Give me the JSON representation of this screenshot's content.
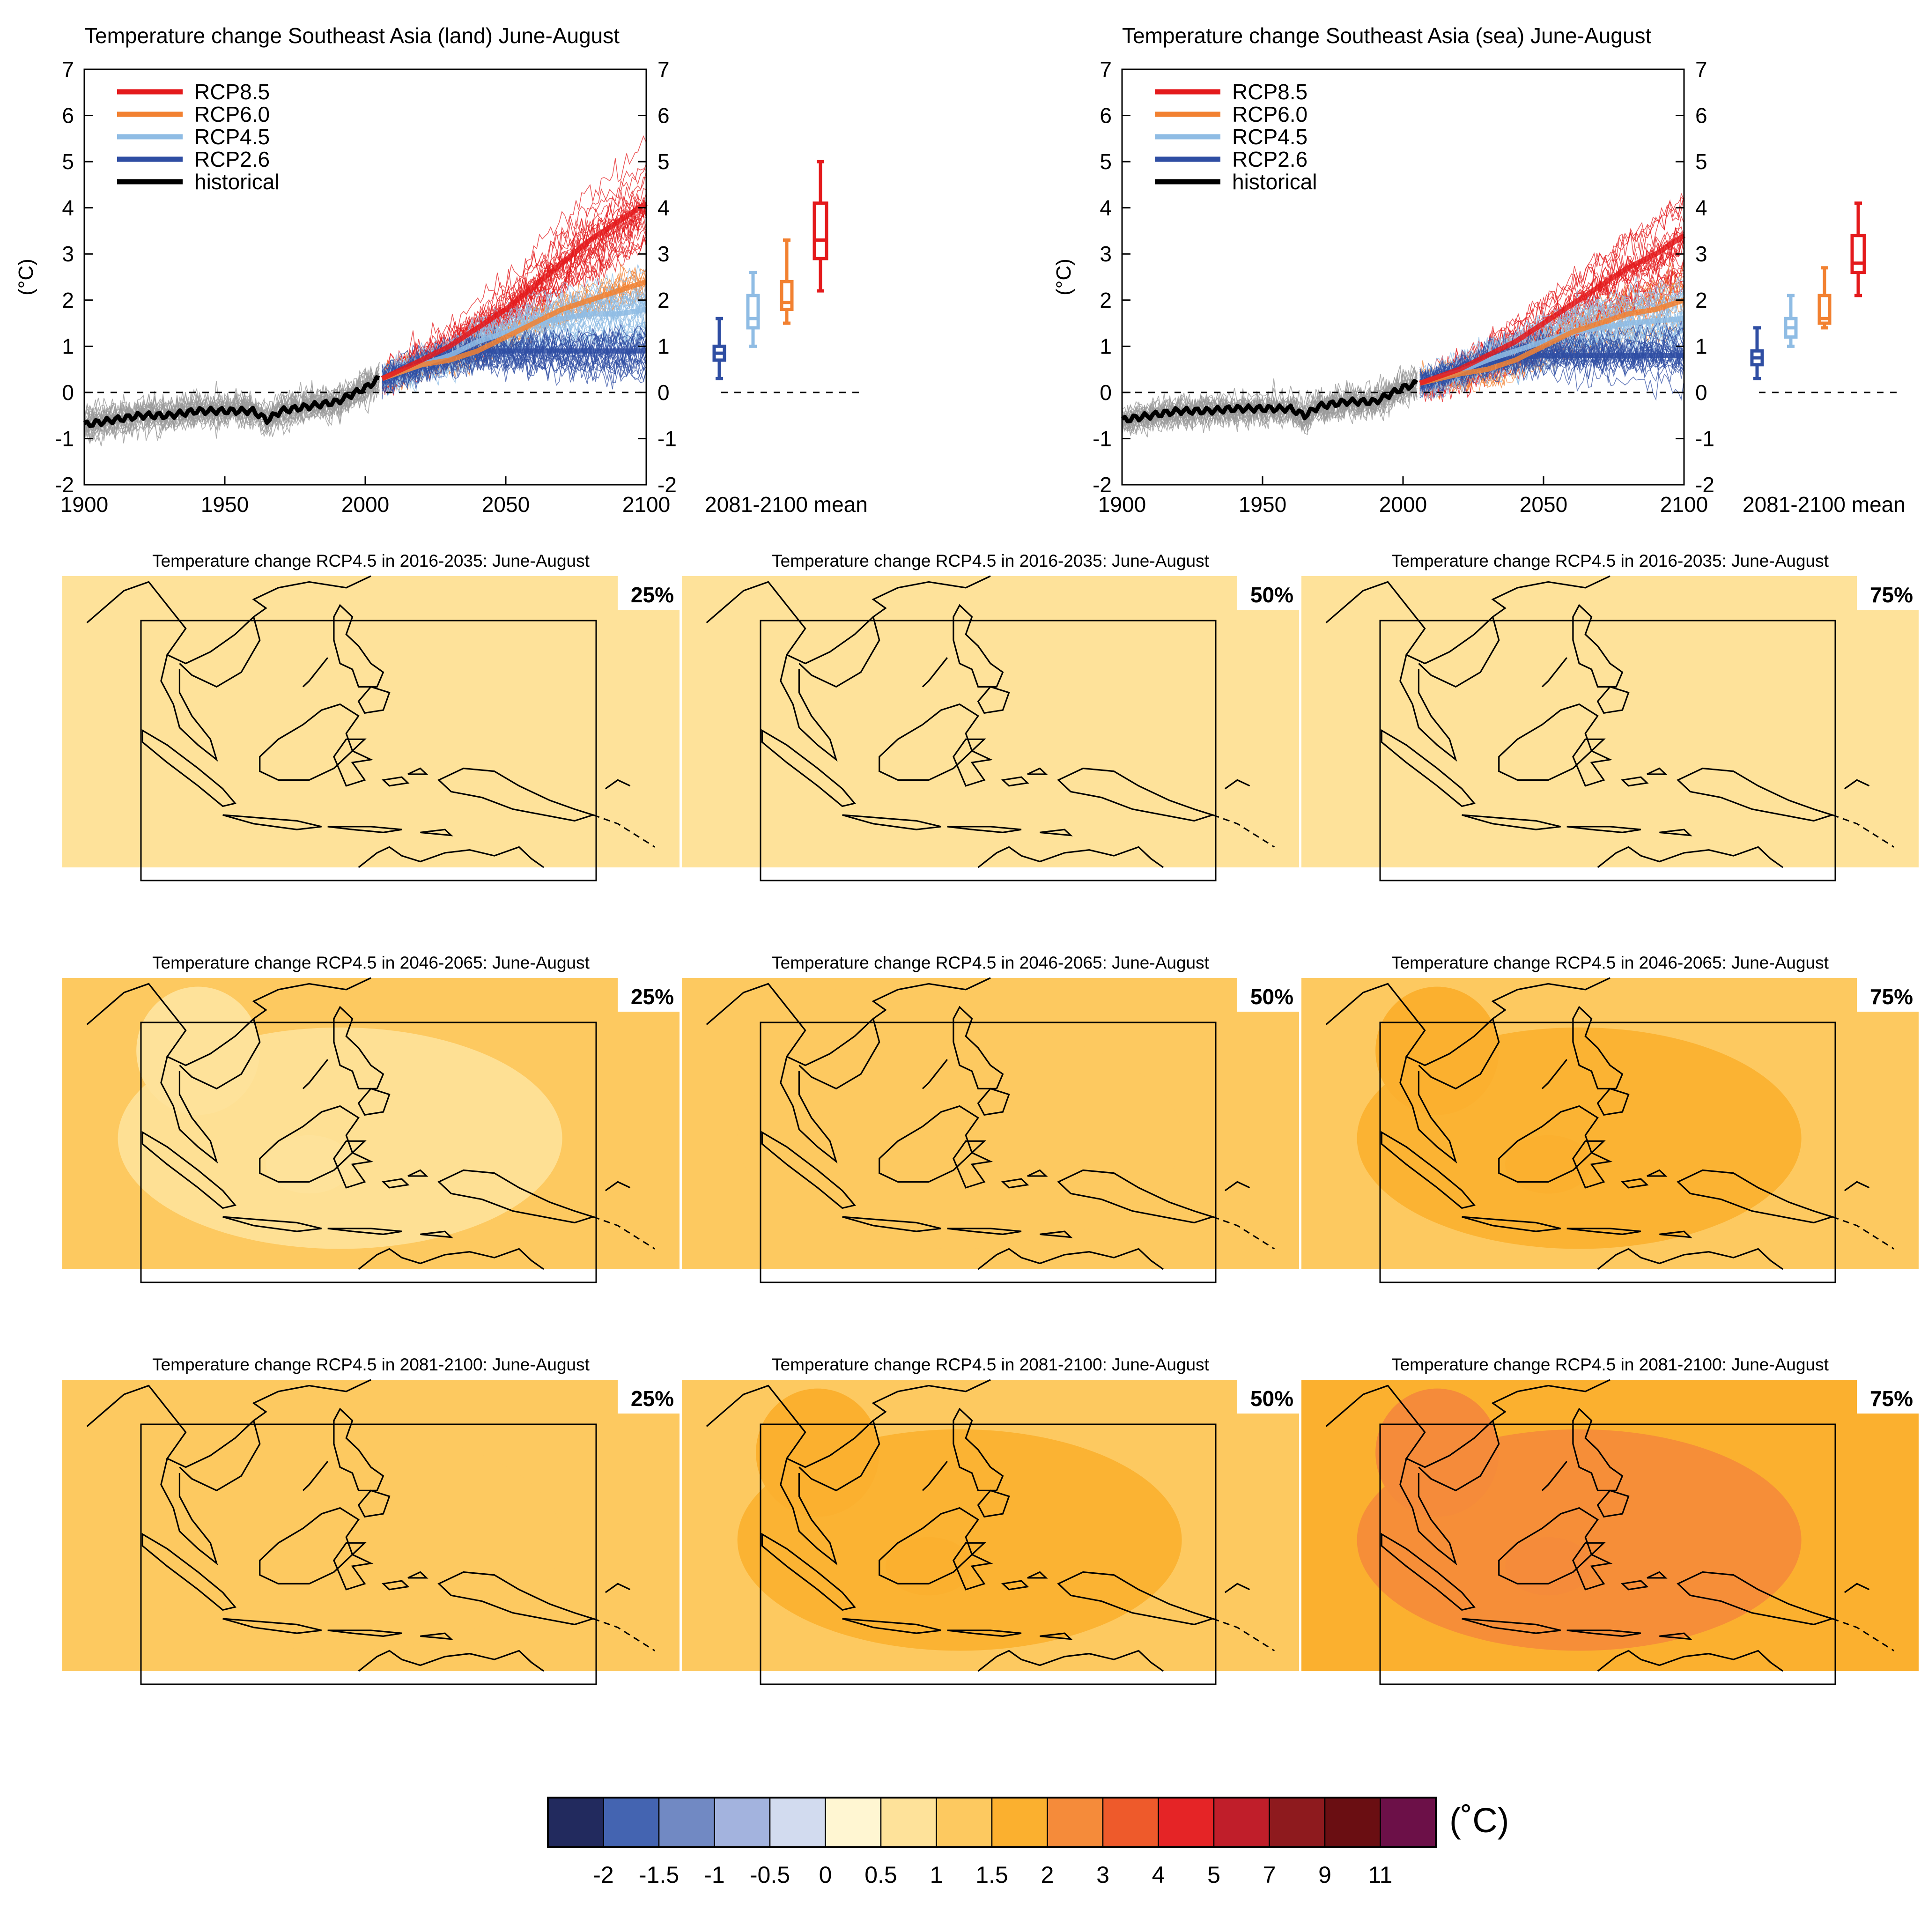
{
  "colors": {
    "rcp85": "#e41a1c",
    "rcp60": "#f28131",
    "rcp45": "#8fbce4",
    "rcp26": "#2f4ea3",
    "historical": "#000000",
    "ensemble_gray": "#9a9a9a"
  },
  "chart_data": [
    {
      "type": "line",
      "title": "Temperature change Southeast Asia (land) June-August",
      "ylabel": "(°C)",
      "xlabel": "",
      "xlim": [
        1900,
        2100
      ],
      "ylim": [
        -2,
        7
      ],
      "xticks": [
        1900,
        1950,
        2000,
        2050,
        2100
      ],
      "yticks": [
        -2,
        -1,
        0,
        1,
        2,
        3,
        4,
        5,
        6,
        7
      ],
      "legend_position": "top-left",
      "series": [
        {
          "name": "RCP8.5",
          "x": [
            2006,
            2020,
            2030,
            2040,
            2050,
            2060,
            2070,
            2080,
            2090,
            2100
          ],
          "values": [
            0.3,
            0.7,
            1.0,
            1.4,
            1.8,
            2.3,
            2.8,
            3.3,
            3.7,
            4.1
          ]
        },
        {
          "name": "RCP6.0",
          "x": [
            2006,
            2020,
            2030,
            2040,
            2050,
            2060,
            2070,
            2080,
            2090,
            2100
          ],
          "values": [
            0.3,
            0.6,
            0.7,
            0.9,
            1.2,
            1.5,
            1.8,
            2.0,
            2.2,
            2.4
          ]
        },
        {
          "name": "RCP4.5",
          "x": [
            2006,
            2020,
            2030,
            2040,
            2050,
            2060,
            2070,
            2080,
            2090,
            2100
          ],
          "values": [
            0.3,
            0.6,
            0.8,
            1.1,
            1.3,
            1.5,
            1.6,
            1.7,
            1.7,
            1.8
          ]
        },
        {
          "name": "RCP2.6",
          "x": [
            2006,
            2020,
            2030,
            2040,
            2050,
            2060,
            2070,
            2080,
            2090,
            2100
          ],
          "values": [
            0.3,
            0.6,
            0.8,
            0.9,
            0.9,
            0.9,
            0.9,
            0.9,
            0.9,
            0.9
          ]
        },
        {
          "name": "historical",
          "x": [
            1900,
            1910,
            1920,
            1930,
            1940,
            1950,
            1960,
            1965,
            1970,
            1980,
            1990,
            2000,
            2005
          ],
          "values": [
            -0.7,
            -0.6,
            -0.5,
            -0.5,
            -0.4,
            -0.4,
            -0.4,
            -0.6,
            -0.4,
            -0.3,
            -0.2,
            0.1,
            0.3
          ]
        }
      ],
      "boxes_label": "2081-2100 mean",
      "boxes": [
        {
          "name": "RCP2.6",
          "min": 0.3,
          "q1": 0.7,
          "median": 0.85,
          "q3": 1.0,
          "max": 1.6
        },
        {
          "name": "RCP4.5",
          "min": 1.0,
          "q1": 1.4,
          "median": 1.6,
          "q3": 2.1,
          "max": 2.6
        },
        {
          "name": "RCP6.0",
          "min": 1.5,
          "q1": 1.8,
          "median": 1.95,
          "q3": 2.4,
          "max": 3.3
        },
        {
          "name": "RCP8.5",
          "min": 2.2,
          "q1": 2.9,
          "median": 3.3,
          "q3": 4.1,
          "max": 5.0
        }
      ]
    },
    {
      "type": "line",
      "title": "Temperature change Southeast Asia (sea) June-August",
      "ylabel": "(°C)",
      "xlabel": "",
      "xlim": [
        1900,
        2100
      ],
      "ylim": [
        -2,
        7
      ],
      "xticks": [
        1900,
        1950,
        2000,
        2050,
        2100
      ],
      "yticks": [
        -2,
        -1,
        0,
        1,
        2,
        3,
        4,
        5,
        6,
        7
      ],
      "legend_position": "top-left",
      "series": [
        {
          "name": "RCP8.5",
          "x": [
            2006,
            2020,
            2030,
            2040,
            2050,
            2060,
            2070,
            2080,
            2090,
            2100
          ],
          "values": [
            0.2,
            0.5,
            0.8,
            1.1,
            1.5,
            1.9,
            2.3,
            2.7,
            3.0,
            3.4
          ]
        },
        {
          "name": "RCP6.0",
          "x": [
            2006,
            2020,
            2030,
            2040,
            2050,
            2060,
            2070,
            2080,
            2090,
            2100
          ],
          "values": [
            0.2,
            0.4,
            0.5,
            0.7,
            1.0,
            1.3,
            1.5,
            1.7,
            1.8,
            2.0
          ]
        },
        {
          "name": "RCP4.5",
          "x": [
            2006,
            2020,
            2030,
            2040,
            2050,
            2060,
            2070,
            2080,
            2090,
            2100
          ],
          "values": [
            0.2,
            0.45,
            0.7,
            0.9,
            1.1,
            1.3,
            1.4,
            1.5,
            1.55,
            1.6
          ]
        },
        {
          "name": "RCP2.6",
          "x": [
            2006,
            2020,
            2030,
            2040,
            2050,
            2060,
            2070,
            2080,
            2090,
            2100
          ],
          "values": [
            0.2,
            0.45,
            0.65,
            0.75,
            0.8,
            0.8,
            0.8,
            0.8,
            0.8,
            0.8
          ]
        },
        {
          "name": "historical",
          "x": [
            1900,
            1910,
            1920,
            1930,
            1940,
            1950,
            1960,
            1965,
            1970,
            1980,
            1990,
            2000,
            2005
          ],
          "values": [
            -0.6,
            -0.5,
            -0.4,
            -0.4,
            -0.35,
            -0.35,
            -0.35,
            -0.5,
            -0.3,
            -0.2,
            -0.2,
            0.1,
            0.2
          ]
        }
      ],
      "boxes_label": "2081-2100 mean",
      "boxes": [
        {
          "name": "RCP2.6",
          "min": 0.3,
          "q1": 0.6,
          "median": 0.75,
          "q3": 0.9,
          "max": 1.4
        },
        {
          "name": "RCP4.5",
          "min": 1.0,
          "q1": 1.2,
          "median": 1.4,
          "q3": 1.6,
          "max": 2.1
        },
        {
          "name": "RCP6.0",
          "min": 1.4,
          "q1": 1.5,
          "median": 1.6,
          "q3": 2.1,
          "max": 2.7
        },
        {
          "name": "RCP8.5",
          "min": 2.1,
          "q1": 2.6,
          "median": 2.8,
          "q3": 3.4,
          "max": 4.1
        }
      ]
    },
    {
      "type": "heatmap",
      "panels": [
        {
          "title": "Temperature change RCP4.5 in 2016-2035: June-August",
          "percentile": "25%",
          "period": "2016-2035",
          "base_value": 0.5,
          "region_value": 0.75
        },
        {
          "title": "Temperature change RCP4.5 in 2016-2035: June-August",
          "percentile": "50%",
          "period": "2016-2035",
          "base_value": 0.75,
          "region_value": 0.75
        },
        {
          "title": "Temperature change RCP4.5 in 2016-2035: June-August",
          "percentile": "75%",
          "period": "2016-2035",
          "base_value": 0.75,
          "region_value": 0.75
        },
        {
          "title": "Temperature change RCP4.5 in 2046-2065: June-August",
          "percentile": "25%",
          "period": "2046-2065",
          "base_value": 1.25,
          "region_value": 0.75
        },
        {
          "title": "Temperature change RCP4.5 in 2046-2065: June-August",
          "percentile": "50%",
          "period": "2046-2065",
          "base_value": 1.25,
          "region_value": 1.25
        },
        {
          "title": "Temperature change RCP4.5 in 2046-2065: June-August",
          "percentile": "75%",
          "period": "2046-2065",
          "base_value": 1.25,
          "region_value": 1.75
        },
        {
          "title": "Temperature change RCP4.5 in 2081-2100: June-August",
          "percentile": "25%",
          "period": "2081-2100",
          "base_value": 1.25,
          "region_value": 1.25
        },
        {
          "title": "Temperature change RCP4.5 in 2081-2100: June-August",
          "percentile": "50%",
          "period": "2081-2100",
          "base_value": 1.25,
          "region_value": 1.75
        },
        {
          "title": "Temperature change RCP4.5 in 2081-2100: June-August",
          "percentile": "75%",
          "period": "2081-2100",
          "base_value": 1.75,
          "region_value": 2.5
        }
      ]
    }
  ],
  "colorbar": {
    "unit": "(˚C)",
    "labels": [
      "-2",
      "-1.5",
      "-1",
      "-0.5",
      "0",
      "0.5",
      "1",
      "1.5",
      "2",
      "3",
      "4",
      "5",
      "7",
      "9",
      "11"
    ],
    "colors": [
      "#222a5e",
      "#4464b1",
      "#7189c3",
      "#a3b3de",
      "#d2dbef",
      "#fff6d2",
      "#fee29a",
      "#fdc960",
      "#fbb02f",
      "#f58b3a",
      "#ee5a2b",
      "#e52426",
      "#c01e2a",
      "#8e1a1e",
      "#6a0e12",
      "#6c1048"
    ]
  }
}
